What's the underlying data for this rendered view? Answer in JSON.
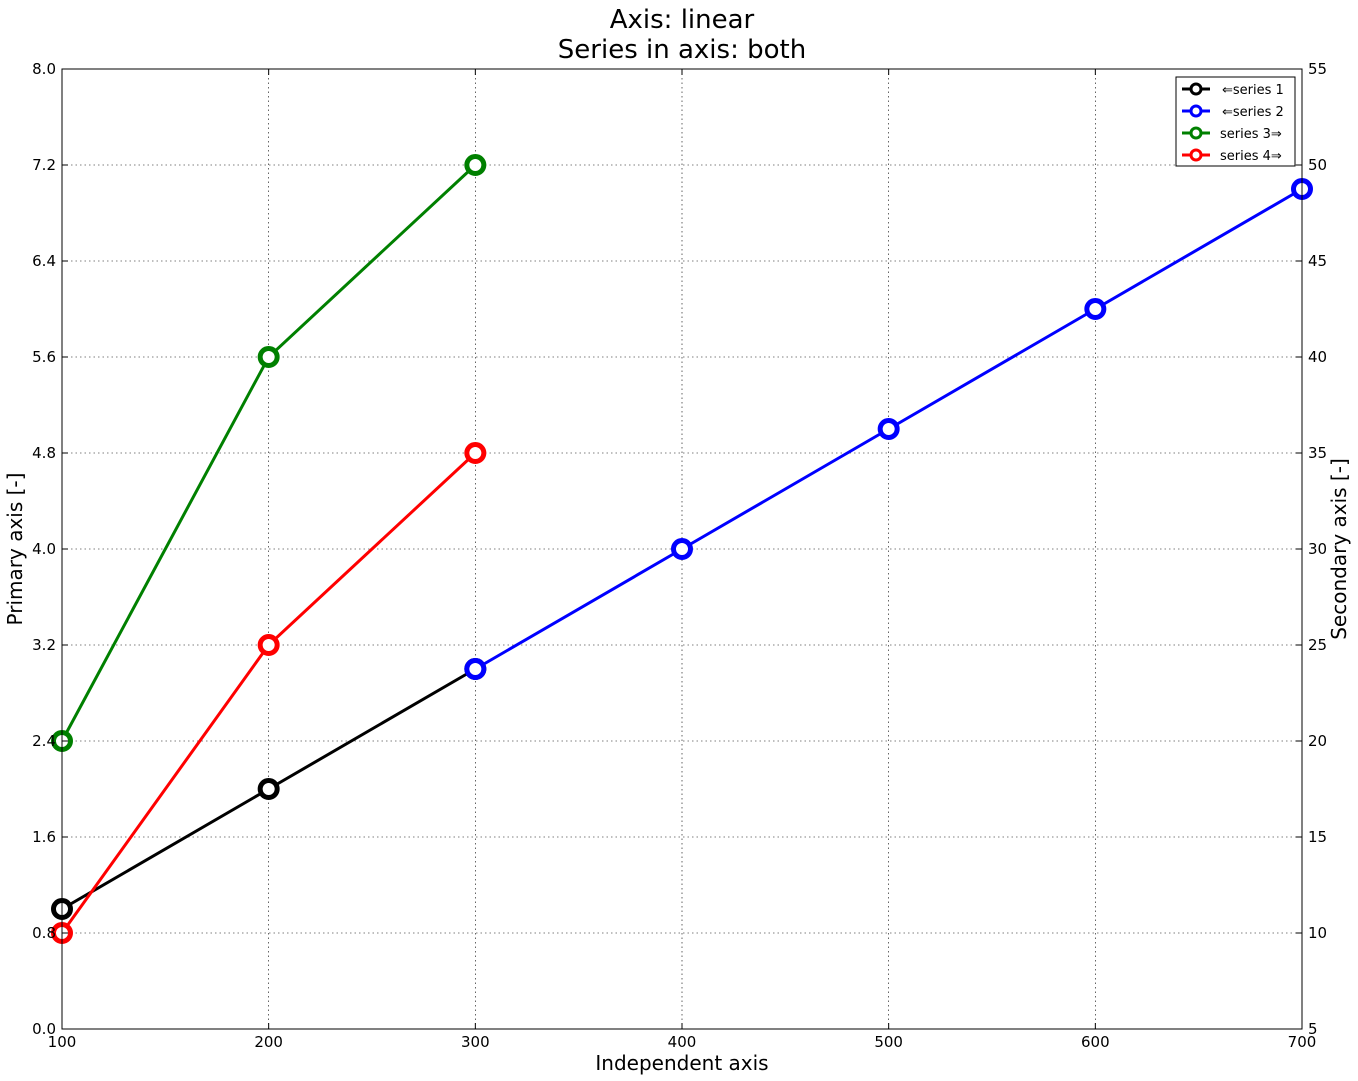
{
  "chart_data": {
    "type": "line",
    "title_lines": [
      "Axis: linear",
      "Series in axis: both"
    ],
    "xlabel": "Independent axis",
    "ylabel": "Primary axis [-]",
    "y2label": "Secondary axis [-]",
    "xlim": [
      100,
      700
    ],
    "ylim": [
      0,
      8
    ],
    "y2lim": [
      5,
      55
    ],
    "xticks": [
      100,
      200,
      300,
      400,
      500,
      600,
      700
    ],
    "xtick_labels": [
      "100",
      "200",
      "300",
      "400",
      "500",
      "600",
      "700"
    ],
    "yticks": [
      0,
      0.8,
      1.6,
      2.4,
      3.2,
      4.0,
      4.8,
      5.6,
      6.4,
      7.2,
      8.0
    ],
    "ytick_labels": [
      "0.0",
      "0.8",
      "1.6",
      "2.4",
      "3.2",
      "4.0",
      "4.8",
      "5.6",
      "6.4",
      "7.2",
      "8.0"
    ],
    "y2ticks": [
      5,
      10,
      15,
      20,
      25,
      30,
      35,
      40,
      45,
      50,
      55
    ],
    "y2tick_labels": [
      "5",
      "10",
      "15",
      "20",
      "25",
      "30",
      "35",
      "40",
      "45",
      "50",
      "55"
    ],
    "grid": true,
    "legend_position": "top-right",
    "series": [
      {
        "name": "⇐series 1",
        "color": "#000000",
        "axis": "primary",
        "x": [
          100,
          200,
          300
        ],
        "y": [
          1.0,
          2.0,
          3.0
        ]
      },
      {
        "name": "⇐series 2",
        "color": "#0000ff",
        "axis": "primary",
        "x": [
          300,
          400,
          500,
          600,
          700
        ],
        "y": [
          3.0,
          4.0,
          5.0,
          6.0,
          7.0
        ]
      },
      {
        "name": "series 3⇒",
        "color": "#008000",
        "axis": "secondary",
        "x": [
          100,
          200,
          300
        ],
        "y": [
          20,
          40,
          50
        ]
      },
      {
        "name": "series 4⇒",
        "color": "#ff0000",
        "axis": "secondary",
        "x": [
          100,
          200,
          300
        ],
        "y": [
          10,
          25,
          35
        ]
      }
    ]
  }
}
